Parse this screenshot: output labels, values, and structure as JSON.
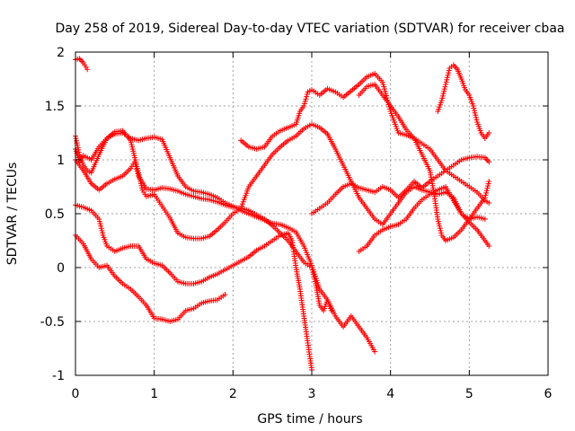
{
  "chart_data": {
    "type": "scatter",
    "title": "Day 258 of 2019, Sidereal Day-to-day VTEC variation (SDTVAR) for receiver cbaa",
    "xlabel": "GPS time / hours",
    "ylabel": "SDTVAR / TECUs",
    "xlim": [
      0,
      6
    ],
    "ylim": [
      -1,
      2
    ],
    "xticks": [
      0,
      1,
      2,
      3,
      4,
      5,
      6
    ],
    "xtick_labels": [
      "0",
      "1",
      "2",
      "3",
      "4",
      "5",
      "6"
    ],
    "yticks": [
      -1,
      -0.5,
      0,
      0.5,
      1,
      1.5,
      2
    ],
    "ytick_labels": [
      "-1",
      "-0.5",
      "0",
      "0.5",
      "1",
      "1.5",
      "2"
    ],
    "grid": true,
    "marker": "+",
    "color": "#ff0000",
    "series": [
      {
        "name": "trace-1",
        "points": [
          [
            0.0,
            1.93
          ],
          [
            0.05,
            1.94
          ],
          [
            0.1,
            1.9
          ],
          [
            0.15,
            1.84
          ]
        ]
      },
      {
        "name": "trace-2",
        "points": [
          [
            0.0,
            1.22
          ],
          [
            0.05,
            1.05
          ],
          [
            0.1,
            0.95
          ],
          [
            0.15,
            0.9
          ],
          [
            0.2,
            0.88
          ],
          [
            0.3,
            1.05
          ],
          [
            0.4,
            1.2
          ],
          [
            0.5,
            1.24
          ],
          [
            0.6,
            1.25
          ],
          [
            0.7,
            1.2
          ],
          [
            0.8,
            1.18
          ],
          [
            0.9,
            1.2
          ],
          [
            1.0,
            1.21
          ],
          [
            1.1,
            1.19
          ],
          [
            1.2,
            1.02
          ],
          [
            1.3,
            0.85
          ],
          [
            1.4,
            0.75
          ],
          [
            1.5,
            0.71
          ],
          [
            1.6,
            0.7
          ],
          [
            1.7,
            0.68
          ],
          [
            1.8,
            0.65
          ],
          [
            1.9,
            0.6
          ],
          [
            2.0,
            0.57
          ],
          [
            2.1,
            0.53
          ],
          [
            2.2,
            0.5
          ],
          [
            2.3,
            0.47
          ],
          [
            2.4,
            0.44
          ],
          [
            2.5,
            0.41
          ],
          [
            2.6,
            0.4
          ],
          [
            2.7,
            0.37
          ],
          [
            2.8,
            0.33
          ],
          [
            2.9,
            0.2
          ],
          [
            3.0,
            0.02
          ],
          [
            3.1,
            -0.2
          ],
          [
            3.2,
            -0.3
          ],
          [
            3.3,
            -0.45
          ],
          [
            3.4,
            -0.55
          ],
          [
            3.5,
            -0.45
          ],
          [
            3.6,
            -0.55
          ],
          [
            3.7,
            -0.65
          ],
          [
            3.8,
            -0.78
          ]
        ]
      },
      {
        "name": "trace-3",
        "points": [
          [
            0.0,
            1.1
          ],
          [
            0.05,
            0.98
          ],
          [
            0.1,
            1.04
          ],
          [
            0.2,
            1.0
          ],
          [
            0.3,
            1.12
          ],
          [
            0.4,
            1.2
          ],
          [
            0.5,
            1.26
          ],
          [
            0.6,
            1.27
          ],
          [
            0.7,
            1.18
          ],
          [
            0.8,
            0.88
          ],
          [
            0.85,
            0.72
          ],
          [
            0.9,
            0.66
          ],
          [
            1.0,
            0.68
          ],
          [
            1.1,
            0.57
          ],
          [
            1.2,
            0.46
          ],
          [
            1.3,
            0.32
          ],
          [
            1.4,
            0.28
          ],
          [
            1.5,
            0.27
          ],
          [
            1.6,
            0.27
          ],
          [
            1.7,
            0.29
          ],
          [
            1.8,
            0.35
          ],
          [
            1.9,
            0.42
          ],
          [
            2.0,
            0.5
          ],
          [
            2.1,
            0.55
          ],
          [
            2.2,
            0.75
          ],
          [
            2.3,
            0.85
          ],
          [
            2.4,
            0.95
          ],
          [
            2.5,
            1.05
          ],
          [
            2.6,
            1.12
          ],
          [
            2.7,
            1.18
          ],
          [
            2.8,
            1.22
          ],
          [
            2.9,
            1.29
          ],
          [
            3.0,
            1.33
          ],
          [
            3.1,
            1.3
          ],
          [
            3.2,
            1.24
          ],
          [
            3.3,
            1.1
          ],
          [
            3.4,
            0.95
          ],
          [
            3.5,
            0.8
          ],
          [
            3.6,
            0.65
          ],
          [
            3.7,
            0.55
          ],
          [
            3.8,
            0.45
          ],
          [
            3.9,
            0.4
          ],
          [
            4.0,
            0.5
          ],
          [
            4.1,
            0.6
          ],
          [
            4.2,
            0.7
          ],
          [
            4.3,
            0.75
          ],
          [
            4.4,
            0.72
          ],
          [
            4.5,
            0.7
          ],
          [
            4.6,
            0.68
          ],
          [
            4.7,
            0.7
          ],
          [
            4.8,
            0.65
          ],
          [
            4.9,
            0.5
          ],
          [
            5.0,
            0.45
          ],
          [
            5.1,
            0.47
          ],
          [
            5.2,
            0.45
          ]
        ]
      },
      {
        "name": "trace-4",
        "points": [
          [
            0.0,
            0.58
          ],
          [
            0.1,
            0.56
          ],
          [
            0.2,
            0.53
          ],
          [
            0.3,
            0.45
          ],
          [
            0.35,
            0.3
          ],
          [
            0.4,
            0.2
          ],
          [
            0.5,
            0.15
          ],
          [
            0.6,
            0.18
          ],
          [
            0.7,
            0.2
          ],
          [
            0.8,
            0.2
          ],
          [
            0.9,
            0.08
          ],
          [
            1.0,
            0.04
          ],
          [
            1.1,
            0.02
          ],
          [
            1.2,
            -0.05
          ],
          [
            1.3,
            -0.13
          ],
          [
            1.4,
            -0.15
          ],
          [
            1.5,
            -0.15
          ],
          [
            1.6,
            -0.13
          ],
          [
            1.7,
            -0.09
          ],
          [
            1.8,
            -0.06
          ],
          [
            1.9,
            -0.02
          ],
          [
            2.0,
            0.02
          ],
          [
            2.1,
            0.06
          ],
          [
            2.2,
            0.1
          ],
          [
            2.3,
            0.16
          ],
          [
            2.4,
            0.2
          ],
          [
            2.5,
            0.25
          ],
          [
            2.6,
            0.3
          ],
          [
            2.7,
            0.32
          ],
          [
            2.75,
            0.25
          ],
          [
            2.8,
            0.0
          ],
          [
            2.85,
            -0.2
          ],
          [
            2.9,
            -0.45
          ],
          [
            2.95,
            -0.7
          ],
          [
            3.0,
            -0.95
          ]
        ]
      },
      {
        "name": "trace-5",
        "points": [
          [
            0.0,
            0.3
          ],
          [
            0.1,
            0.22
          ],
          [
            0.2,
            0.08
          ],
          [
            0.3,
            0.0
          ],
          [
            0.4,
            0.02
          ],
          [
            0.5,
            -0.08
          ],
          [
            0.6,
            -0.15
          ],
          [
            0.7,
            -0.2
          ],
          [
            0.8,
            -0.27
          ],
          [
            0.9,
            -0.35
          ],
          [
            1.0,
            -0.47
          ],
          [
            1.1,
            -0.48
          ],
          [
            1.2,
            -0.5
          ],
          [
            1.3,
            -0.48
          ],
          [
            1.4,
            -0.4
          ],
          [
            1.5,
            -0.38
          ],
          [
            1.6,
            -0.33
          ],
          [
            1.7,
            -0.31
          ],
          [
            1.8,
            -0.3
          ],
          [
            1.9,
            -0.25
          ]
        ]
      },
      {
        "name": "trace-6",
        "points": [
          [
            0.0,
            1.0
          ],
          [
            0.1,
            0.9
          ],
          [
            0.2,
            0.78
          ],
          [
            0.3,
            0.72
          ],
          [
            0.4,
            0.78
          ],
          [
            0.5,
            0.82
          ],
          [
            0.6,
            0.85
          ],
          [
            0.7,
            0.92
          ],
          [
            0.75,
            0.98
          ],
          [
            0.8,
            0.85
          ],
          [
            0.9,
            0.73
          ],
          [
            1.0,
            0.72
          ],
          [
            1.1,
            0.74
          ],
          [
            1.2,
            0.73
          ],
          [
            1.3,
            0.71
          ],
          [
            1.4,
            0.68
          ],
          [
            1.5,
            0.66
          ],
          [
            1.6,
            0.64
          ],
          [
            1.7,
            0.63
          ],
          [
            1.8,
            0.61
          ],
          [
            1.9,
            0.58
          ],
          [
            2.0,
            0.56
          ],
          [
            2.1,
            0.55
          ],
          [
            2.2,
            0.53
          ],
          [
            2.3,
            0.49
          ],
          [
            2.4,
            0.45
          ],
          [
            2.5,
            0.39
          ],
          [
            2.6,
            0.32
          ],
          [
            2.7,
            0.25
          ],
          [
            2.8,
            0.15
          ],
          [
            2.9,
            0.05
          ],
          [
            3.0,
            0.0
          ],
          [
            3.05,
            -0.15
          ],
          [
            3.1,
            -0.35
          ],
          [
            3.15,
            -0.4
          ],
          [
            3.2,
            -0.3
          ],
          [
            3.25,
            -0.4
          ]
        ]
      },
      {
        "name": "trace-7",
        "points": [
          [
            2.1,
            1.18
          ],
          [
            2.2,
            1.12
          ],
          [
            2.3,
            1.1
          ],
          [
            2.4,
            1.12
          ],
          [
            2.5,
            1.22
          ],
          [
            2.6,
            1.27
          ],
          [
            2.7,
            1.3
          ],
          [
            2.8,
            1.33
          ],
          [
            2.85,
            1.45
          ],
          [
            2.9,
            1.5
          ],
          [
            2.95,
            1.63
          ],
          [
            3.0,
            1.65
          ],
          [
            3.1,
            1.6
          ],
          [
            3.2,
            1.66
          ],
          [
            3.3,
            1.63
          ],
          [
            3.4,
            1.58
          ],
          [
            3.5,
            1.64
          ],
          [
            3.6,
            1.7
          ],
          [
            3.7,
            1.77
          ],
          [
            3.8,
            1.8
          ],
          [
            3.9,
            1.72
          ],
          [
            4.0,
            1.45
          ],
          [
            4.1,
            1.25
          ],
          [
            4.2,
            1.23
          ],
          [
            4.3,
            1.2
          ],
          [
            4.4,
            1.15
          ],
          [
            4.5,
            1.1
          ],
          [
            4.6,
            1.0
          ],
          [
            4.7,
            0.9
          ],
          [
            4.8,
            0.85
          ],
          [
            4.9,
            0.8
          ],
          [
            5.0,
            0.75
          ],
          [
            5.1,
            0.7
          ],
          [
            5.2,
            0.62
          ],
          [
            5.25,
            0.6
          ]
        ]
      },
      {
        "name": "trace-8",
        "points": [
          [
            3.0,
            0.5
          ],
          [
            3.1,
            0.55
          ],
          [
            3.2,
            0.6
          ],
          [
            3.3,
            0.68
          ],
          [
            3.4,
            0.75
          ],
          [
            3.5,
            0.78
          ],
          [
            3.6,
            0.74
          ],
          [
            3.7,
            0.72
          ],
          [
            3.8,
            0.7
          ],
          [
            3.9,
            0.75
          ],
          [
            4.0,
            0.72
          ],
          [
            4.1,
            0.65
          ],
          [
            4.2,
            0.72
          ],
          [
            4.3,
            0.8
          ],
          [
            4.4,
            0.74
          ],
          [
            4.5,
            0.8
          ],
          [
            4.6,
            0.85
          ],
          [
            4.7,
            0.9
          ],
          [
            4.8,
            0.95
          ],
          [
            4.9,
            1.0
          ],
          [
            5.0,
            1.02
          ],
          [
            5.1,
            1.03
          ],
          [
            5.2,
            1.02
          ],
          [
            5.25,
            0.98
          ]
        ]
      },
      {
        "name": "trace-9",
        "points": [
          [
            3.6,
            1.6
          ],
          [
            3.7,
            1.68
          ],
          [
            3.8,
            1.7
          ],
          [
            3.9,
            1.6
          ],
          [
            4.0,
            1.5
          ],
          [
            4.1,
            1.4
          ],
          [
            4.2,
            1.28
          ],
          [
            4.3,
            1.2
          ],
          [
            4.4,
            1.05
          ],
          [
            4.5,
            0.9
          ],
          [
            4.55,
            0.7
          ],
          [
            4.6,
            0.45
          ],
          [
            4.65,
            0.3
          ],
          [
            4.7,
            0.25
          ],
          [
            4.8,
            0.28
          ],
          [
            4.9,
            0.35
          ],
          [
            5.0,
            0.45
          ],
          [
            5.1,
            0.55
          ],
          [
            5.2,
            0.65
          ],
          [
            5.25,
            0.8
          ]
        ]
      },
      {
        "name": "trace-10",
        "points": [
          [
            3.6,
            0.15
          ],
          [
            3.7,
            0.2
          ],
          [
            3.8,
            0.3
          ],
          [
            3.9,
            0.35
          ],
          [
            4.0,
            0.38
          ],
          [
            4.1,
            0.4
          ],
          [
            4.2,
            0.45
          ],
          [
            4.3,
            0.55
          ],
          [
            4.4,
            0.63
          ],
          [
            4.5,
            0.68
          ],
          [
            4.6,
            0.72
          ],
          [
            4.7,
            0.75
          ],
          [
            4.8,
            0.62
          ],
          [
            4.9,
            0.5
          ],
          [
            5.0,
            0.42
          ],
          [
            5.1,
            0.35
          ],
          [
            5.2,
            0.25
          ],
          [
            5.25,
            0.2
          ]
        ]
      },
      {
        "name": "trace-11",
        "points": [
          [
            4.6,
            1.45
          ],
          [
            4.65,
            1.55
          ],
          [
            4.7,
            1.7
          ],
          [
            4.75,
            1.85
          ],
          [
            4.8,
            1.88
          ],
          [
            4.85,
            1.84
          ],
          [
            4.9,
            1.75
          ],
          [
            4.95,
            1.65
          ],
          [
            5.0,
            1.6
          ],
          [
            5.05,
            1.5
          ],
          [
            5.1,
            1.35
          ],
          [
            5.15,
            1.25
          ],
          [
            5.2,
            1.2
          ],
          [
            5.25,
            1.25
          ]
        ]
      }
    ]
  }
}
